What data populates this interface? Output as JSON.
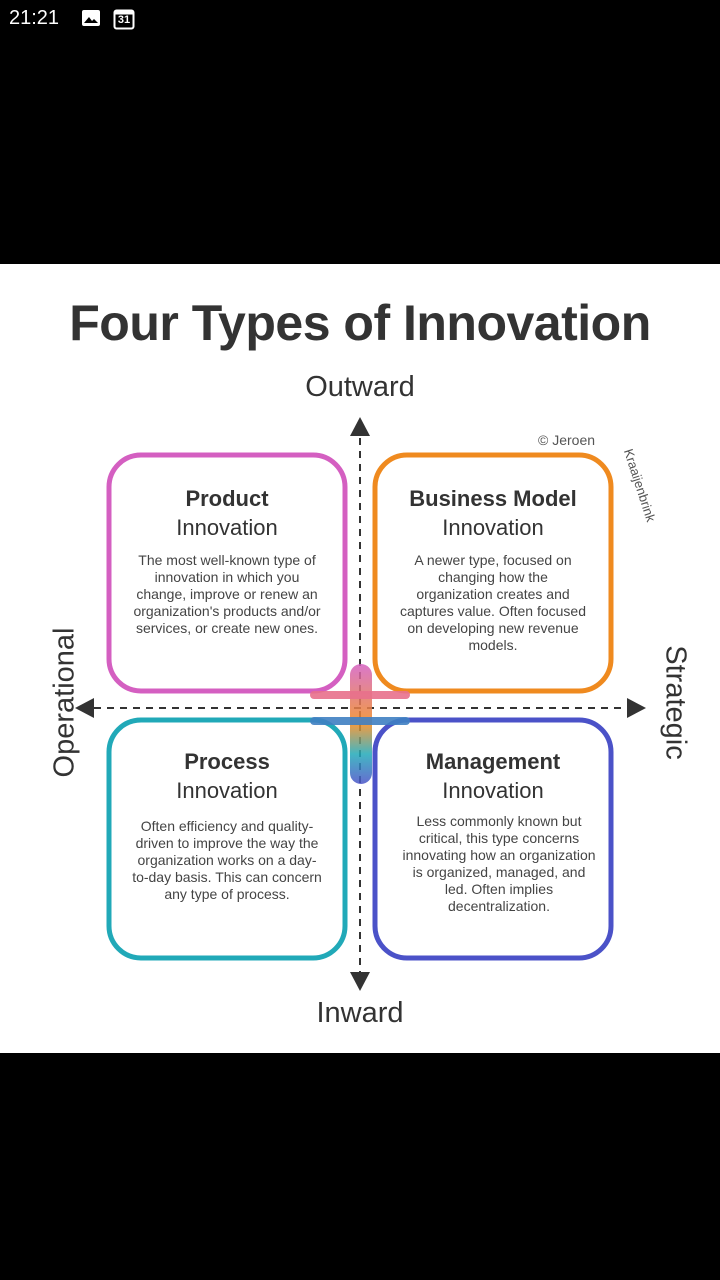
{
  "status_bar": {
    "time": "21:21",
    "icons": [
      "image-icon",
      "calendar-icon"
    ],
    "calendar_day": "31"
  },
  "diagram": {
    "title": "Four Types of Innovation",
    "axes": {
      "top": "Outward",
      "bottom": "Inward",
      "left": "Operational",
      "right": "Strategic"
    },
    "copyright_line1": "© Jeroen",
    "copyright_line2": "Kraaijenbrink",
    "quadrants": [
      {
        "title_bold": "Product",
        "title_regular": "Innovation",
        "description": "The most well-known type of innovation in which you change, improve or renew an organization's products and/or services, or create new ones.",
        "color": "#d45fc1"
      },
      {
        "title_bold": "Business Model",
        "title_regular": "Innovation",
        "description": "A newer type, focused on changing how the organization creates and captures value. Often focused on developing new revenue models.",
        "color": "#ef8a1f"
      },
      {
        "title_bold": "Process",
        "title_regular": "Innovation",
        "description": "Often efficiency and quality-driven to improve the way the organization works on a day-to-day basis. This can concern any type of process.",
        "color": "#21a9b8"
      },
      {
        "title_bold": "Management",
        "title_regular": "Innovation",
        "description": "Less commonly known but critical, this type concerns innovating how an organization is organized, managed, and led. Often implies decentralization.",
        "color": "#4b52c8"
      }
    ]
  }
}
